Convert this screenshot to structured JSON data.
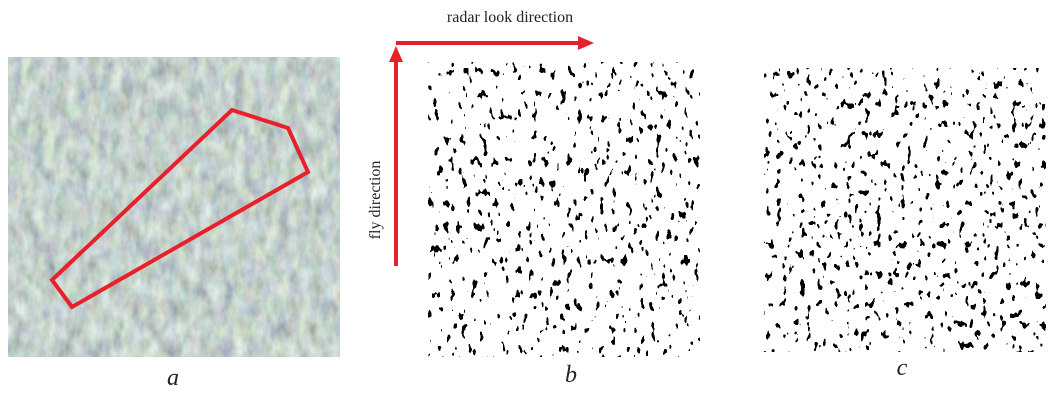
{
  "figure": {
    "axis_labels": {
      "horizontal": "radar look direction",
      "vertical": "fly direction"
    },
    "panels": [
      {
        "label": "a"
      },
      {
        "label": "b"
      },
      {
        "label": "c"
      }
    ]
  }
}
